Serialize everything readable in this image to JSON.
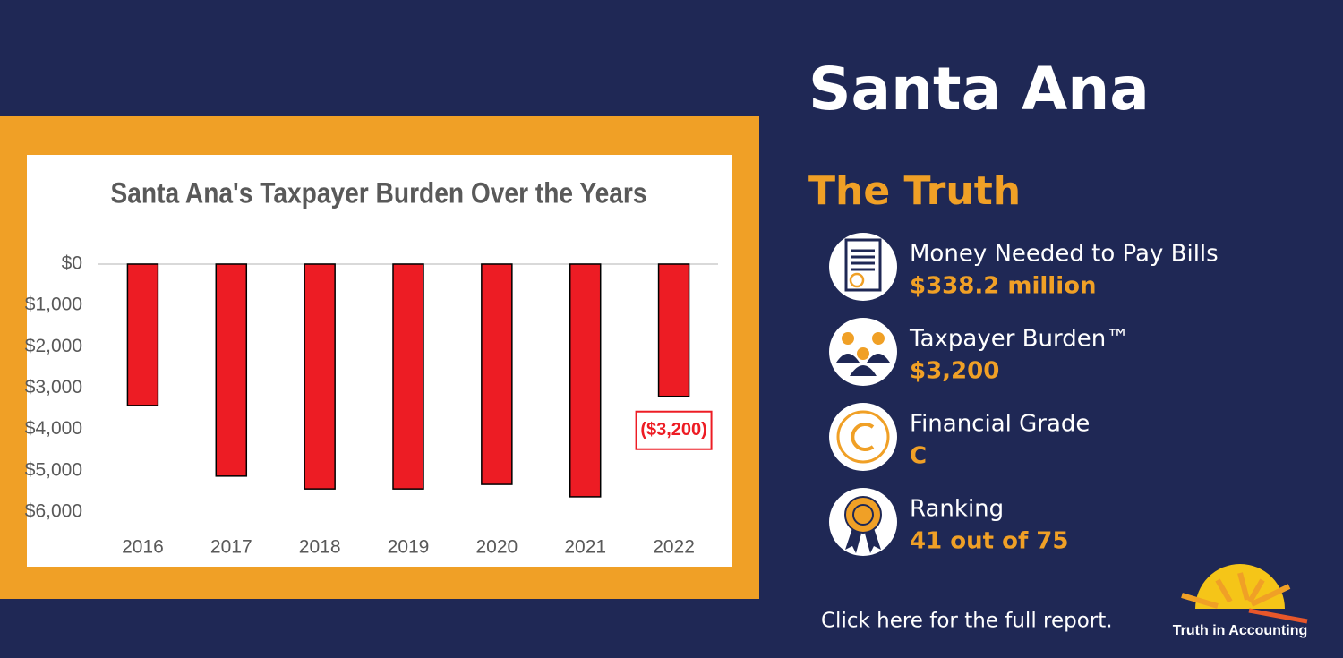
{
  "chart_data": {
    "type": "bar",
    "title": "Santa Ana's Taxpayer Burden Over the Years",
    "categories": [
      "2016",
      "2017",
      "2018",
      "2019",
      "2020",
      "2021",
      "2022"
    ],
    "values": [
      -3420,
      -5130,
      -5440,
      -5440,
      -5330,
      -5630,
      -3200
    ],
    "value_labels": [
      null,
      null,
      null,
      null,
      null,
      null,
      "($3,200)"
    ],
    "color": "#ed1c24",
    "ylim": [
      -6000,
      0
    ],
    "yticks": [
      {
        "value": 0,
        "label": "$0"
      },
      {
        "value": -1000,
        "label": "$1,000"
      },
      {
        "value": -2000,
        "label": "$2,000"
      },
      {
        "value": -3000,
        "label": "$3,000"
      },
      {
        "value": -4000,
        "label": "$4,000"
      },
      {
        "value": -5000,
        "label": "$5,000"
      },
      {
        "value": -6000,
        "label": "$6,000"
      }
    ],
    "grid": false
  },
  "header": {
    "title": "Santa Ana",
    "subtitle": "The Truth"
  },
  "items": [
    {
      "label": "Money Needed to Pay Bills",
      "value": "$338.2 million"
    },
    {
      "label": "Taxpayer Burden™",
      "value": "$3,200"
    },
    {
      "label": "Financial Grade",
      "value": "C"
    },
    {
      "label": "Ranking",
      "value": "41 out of 75"
    }
  ],
  "footer": {
    "link": "Click here for the full report.",
    "logo": "Truth in Accounting"
  }
}
